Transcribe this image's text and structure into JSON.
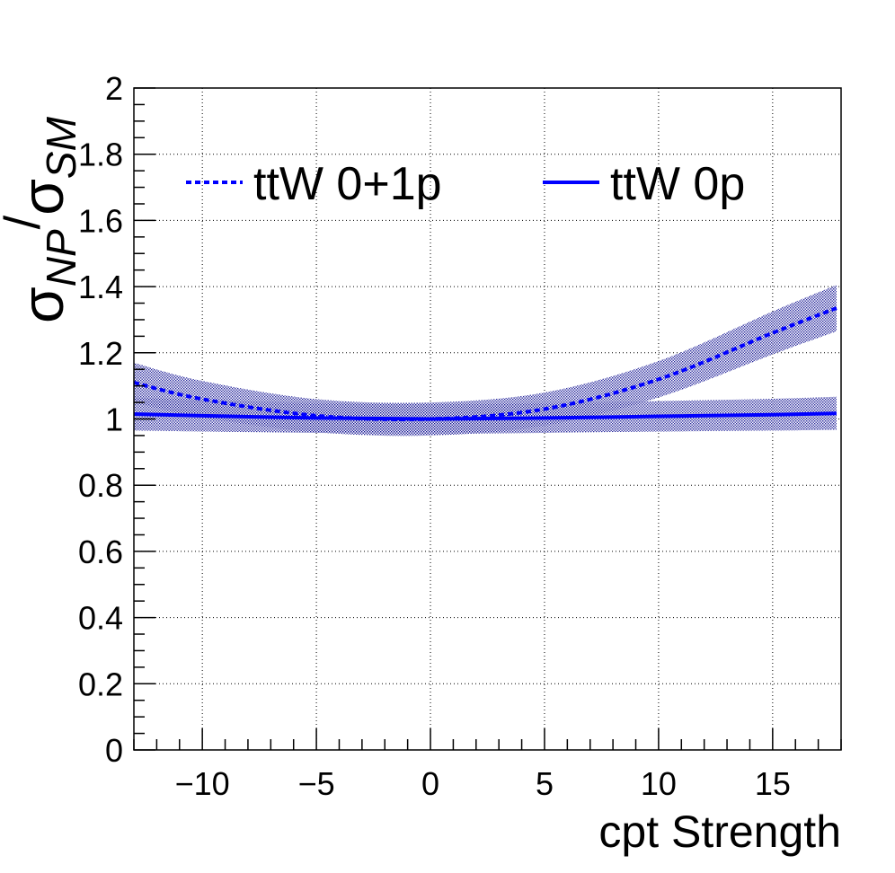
{
  "chart_data": {
    "type": "line",
    "title": "",
    "xlabel": "cpt Strength",
    "ylabel": "σNP/σSM",
    "ylabel_parts": {
      "sigma1": "σ",
      "sub1": "NP",
      "slash": "/",
      "sigma2": "σ",
      "sub2": "SM"
    },
    "xlim": [
      -13,
      18
    ],
    "ylim": [
      0,
      2
    ],
    "x_ticks": [
      -10,
      -5,
      0,
      5,
      10,
      15
    ],
    "x_tick_labels": [
      "−10",
      "−5",
      "0",
      "5",
      "10",
      "15"
    ],
    "y_ticks": [
      0,
      0.2,
      0.4,
      0.6,
      0.8,
      1,
      1.2,
      1.4,
      1.6,
      1.8,
      2
    ],
    "y_tick_labels": [
      "0",
      "0.2",
      "0.4",
      "0.6",
      "0.8",
      "1",
      "1.2",
      "1.4",
      "1.6",
      "1.8",
      "2"
    ],
    "grid": true,
    "legend_position": "top",
    "colors": {
      "series": "#0000ff",
      "band": "#00008b",
      "axis": "#000000",
      "grid": "#000000"
    },
    "series": [
      {
        "name": "ttW 0+1p",
        "style": "dashed",
        "x": [
          -13,
          -10,
          -5,
          0,
          5,
          10,
          15,
          17.8
        ],
        "y": [
          1.11,
          1.06,
          1.01,
          1.0,
          1.03,
          1.12,
          1.26,
          1.335
        ],
        "err": [
          0.06,
          0.055,
          0.05,
          0.05,
          0.05,
          0.055,
          0.065,
          0.07
        ]
      },
      {
        "name": "ttW 0p",
        "style": "solid",
        "x": [
          -13,
          -10,
          -5,
          0,
          5,
          10,
          15,
          17.8
        ],
        "y": [
          1.015,
          1.01,
          1.003,
          1.0,
          1.003,
          1.008,
          1.013,
          1.017
        ],
        "err": [
          0.05,
          0.048,
          0.045,
          0.045,
          0.045,
          0.046,
          0.048,
          0.05
        ]
      }
    ]
  }
}
